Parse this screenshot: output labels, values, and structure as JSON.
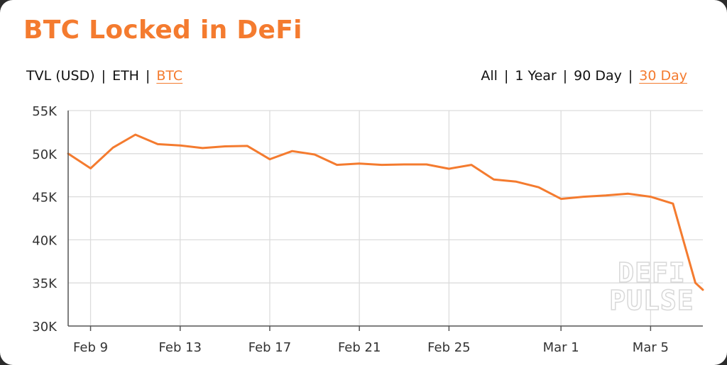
{
  "header": {
    "title": "BTC Locked in DeFi"
  },
  "metric_toggle": {
    "options": [
      {
        "label": "TVL (USD)",
        "active": false
      },
      {
        "label": "ETH",
        "active": false
      },
      {
        "label": "BTC",
        "active": true
      }
    ],
    "separator": "|"
  },
  "range_toggle": {
    "options": [
      {
        "label": "All",
        "active": false
      },
      {
        "label": "1 Year",
        "active": false
      },
      {
        "label": "90 Day",
        "active": false
      },
      {
        "label": "30 Day",
        "active": true
      }
    ],
    "separator": "|"
  },
  "watermark": {
    "line1": "DEFI",
    "line2": "PULSE"
  },
  "colors": {
    "accent": "#f47b2f",
    "text": "#111111",
    "grid": "#dcdcdc",
    "background": "#ffffff"
  },
  "chart_data": {
    "type": "line",
    "title": "BTC Locked in DeFi",
    "xlabel": "",
    "ylabel": "",
    "ylim": [
      30000,
      55000
    ],
    "y_ticks": [
      30000,
      35000,
      40000,
      45000,
      50000,
      55000
    ],
    "y_tick_labels": [
      "30K",
      "35K",
      "40K",
      "45K",
      "50K",
      "55K"
    ],
    "x_ticks": [
      "2020-02-09",
      "2020-02-13",
      "2020-02-17",
      "2020-02-21",
      "2020-02-25",
      "2020-03-01",
      "2020-03-05"
    ],
    "x_tick_labels": [
      "Feb 9",
      "Feb 13",
      "Feb 17",
      "Feb 21",
      "Feb 25",
      "Mar 1",
      "Mar 5"
    ],
    "grid": true,
    "series": [
      {
        "color": "#f47b2f",
        "points": [
          {
            "x": "2020-02-08",
            "y": 50000
          },
          {
            "x": "2020-02-09",
            "y": 48300
          },
          {
            "x": "2020-02-10",
            "y": 50700
          },
          {
            "x": "2020-02-11",
            "y": 52200
          },
          {
            "x": "2020-02-12",
            "y": 51100
          },
          {
            "x": "2020-02-13",
            "y": 50950
          },
          {
            "x": "2020-02-14",
            "y": 50650
          },
          {
            "x": "2020-02-15",
            "y": 50850
          },
          {
            "x": "2020-02-16",
            "y": 50900
          },
          {
            "x": "2020-02-17",
            "y": 49350
          },
          {
            "x": "2020-02-18",
            "y": 50300
          },
          {
            "x": "2020-02-19",
            "y": 49900
          },
          {
            "x": "2020-02-20",
            "y": 48700
          },
          {
            "x": "2020-02-21",
            "y": 48850
          },
          {
            "x": "2020-02-22",
            "y": 48700
          },
          {
            "x": "2020-02-23",
            "y": 48750
          },
          {
            "x": "2020-02-24",
            "y": 48750
          },
          {
            "x": "2020-02-25",
            "y": 48250
          },
          {
            "x": "2020-02-26",
            "y": 48700
          },
          {
            "x": "2020-02-27",
            "y": 47000
          },
          {
            "x": "2020-02-28",
            "y": 46750
          },
          {
            "x": "2020-02-29",
            "y": 46100
          },
          {
            "x": "2020-03-01",
            "y": 44750
          },
          {
            "x": "2020-03-02",
            "y": 45000
          },
          {
            "x": "2020-03-03",
            "y": 45150
          },
          {
            "x": "2020-03-04",
            "y": 45350
          },
          {
            "x": "2020-03-05",
            "y": 45000
          },
          {
            "x": "2020-03-06",
            "y": 44200
          },
          {
            "x": "2020-03-07",
            "y": 35000
          },
          {
            "x": "2020-03-07T08:00",
            "y": 34200
          }
        ]
      }
    ]
  }
}
